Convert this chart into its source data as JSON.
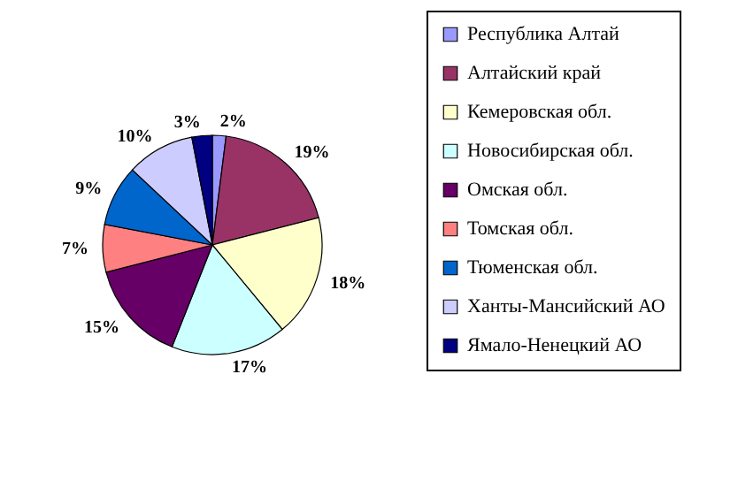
{
  "chart_data": {
    "type": "pie",
    "categories": [
      "Республика Алтай",
      "Алтайский край",
      "Кемеровская обл.",
      "Новосибирская обл.",
      "Омская обл.",
      "Томская обл.",
      "Тюменская обл.",
      "Ханты-Мансийский АО",
      "Ямало-Ненецкий АО"
    ],
    "values": [
      2,
      19,
      18,
      17,
      15,
      7,
      9,
      10,
      3
    ],
    "value_labels": [
      "2%",
      "19%",
      "18%",
      "17%",
      "15%",
      "7%",
      "9%",
      "10%",
      "3%"
    ],
    "colors": [
      "#9999ff",
      "#993366",
      "#ffffcc",
      "#ccffff",
      "#660066",
      "#ff8080",
      "#0066cc",
      "#ccccff",
      "#000080"
    ],
    "legend": "right"
  }
}
